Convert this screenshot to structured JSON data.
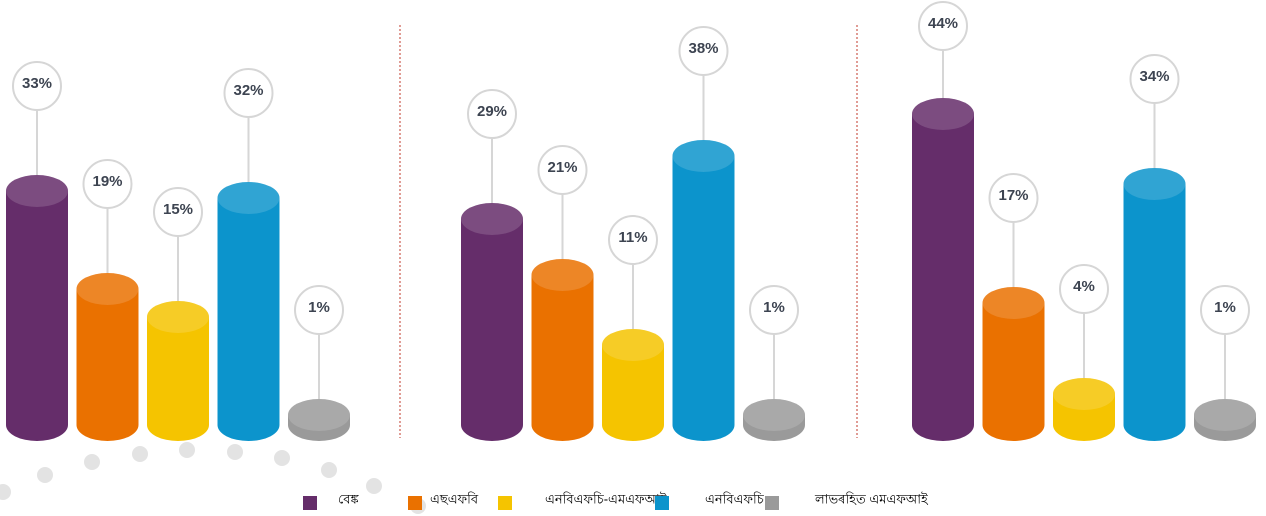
{
  "legend": {
    "names": [
      "বেঙ্ক",
      "এছএফবি",
      "এনবিএফচি-এমএফআই",
      "এনবিএফচি",
      "লাভৰহিত এমএফআই"
    ],
    "colors": [
      "#652d6a",
      "#ea7100",
      "#f5c400",
      "#0c94cc",
      "#9a9a9a"
    ]
  },
  "chart_data": [
    {
      "type": "bar",
      "values": [
        33,
        19,
        15,
        32,
        1
      ],
      "value_labels": [
        "33%",
        "19%",
        "15%",
        "32%",
        "1%"
      ]
    },
    {
      "type": "bar",
      "values": [
        29,
        21,
        11,
        38,
        1
      ],
      "value_labels": [
        "29%",
        "21%",
        "11%",
        "38%",
        "1%"
      ]
    },
    {
      "type": "bar",
      "values": [
        44,
        17,
        4,
        34,
        1
      ],
      "value_labels": [
        "44%",
        "17%",
        "4%",
        "34%",
        "1%"
      ]
    }
  ]
}
